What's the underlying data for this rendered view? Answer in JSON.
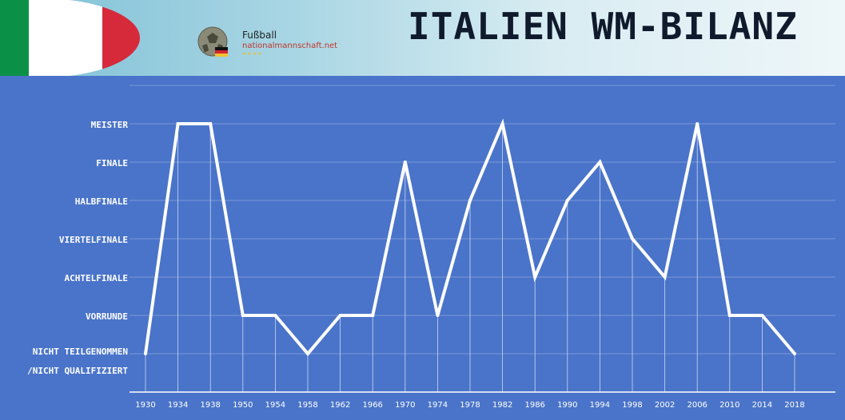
{
  "header": {
    "title": "ITALIEN WM-BILANZ",
    "logo_line1": "Fußball",
    "logo_line2": "nationalmannschaft.net",
    "logo_stars": "★★★★"
  },
  "chart_data": {
    "type": "line",
    "title": "ITALIEN WM-BILANZ",
    "xlabel": "",
    "ylabel": "",
    "categories": [
      "1930",
      "1934",
      "1938",
      "1950",
      "1954",
      "1958",
      "1962",
      "1966",
      "1970",
      "1974",
      "1978",
      "1982",
      "1986",
      "1990",
      "1994",
      "1998",
      "2002",
      "2006",
      "2010",
      "2014",
      "2018"
    ],
    "y_levels": [
      "Nicht teilgenommen /nicht qualifiziert",
      "Vorrunde",
      "Achtelfinale",
      "Viertelfinale",
      "Halbfinale",
      "Finale",
      "Meister"
    ],
    "values": [
      0,
      6,
      6,
      1,
      1,
      0,
      1,
      1,
      5,
      1,
      4,
      6,
      2,
      4,
      5,
      3,
      2,
      6,
      1,
      1,
      0
    ],
    "grid": true,
    "legend": "none",
    "colors": {
      "line": "#ffffff",
      "background": "#4a74c9",
      "grid": "#8aa6dd"
    }
  },
  "axis_labels": {
    "y": [
      "VORRUNDE",
      "ACHTELFINALE",
      "VIERTELFINALE",
      "HALBFINALE",
      "FINALE",
      "MEISTER"
    ],
    "y_bottom_line1": "NICHT TEILGENOMMEN",
    "y_bottom_line2": "/NICHT QUALIFIZIERT"
  }
}
